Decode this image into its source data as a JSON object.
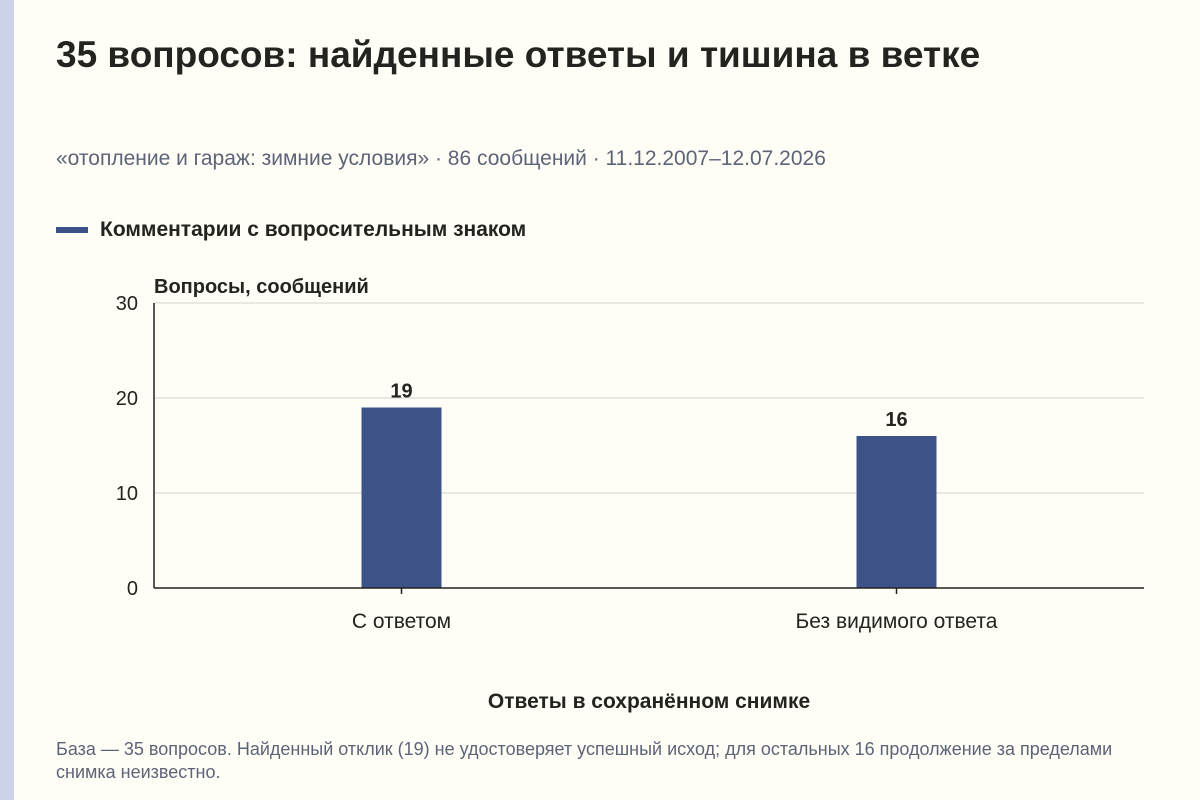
{
  "title": "35 вопросов: найденные ответы и тишина в ветке",
  "subtitle": "«отопление и гараж: зимние условия» · 86 сообщений · 11.12.2007–12.07.2026",
  "footnote": "База — 35 вопросов. Найденный отклик (19) не удостоверяет успешный исход; для остальных 16 продолжение за пределами снимка неизвестно.",
  "colors": {
    "bar": "#3d5287",
    "accent_stripe": "#cbd2ea",
    "background": "#fefdf6"
  },
  "chart_data": {
    "type": "bar",
    "categories": [
      "С ответом",
      "Без видимого ответа"
    ],
    "series": [
      {
        "name": "Комментарии с вопросительным знаком",
        "values": [
          19,
          16
        ]
      }
    ],
    "xlabel": "Ответы в сохранённом снимке",
    "ylabel": "Вопросы, сообщений",
    "ylim": [
      0,
      30
    ],
    "yticks": [
      0,
      10,
      20,
      30
    ],
    "grid": true,
    "legend": "top-left",
    "data_labels": true
  }
}
